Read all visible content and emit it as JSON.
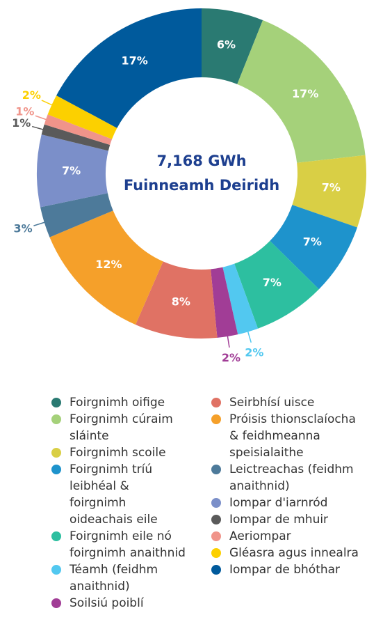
{
  "chart_data": {
    "type": "donut",
    "center_text": [
      "7,168 GWh",
      "Fuinneamh Deiridh"
    ],
    "series": [
      {
        "name": "Foirgnimh oifige",
        "color": "#2a7a72",
        "values": [
          6
        ],
        "value_labels": [
          "6%"
        ]
      },
      {
        "name": "Foirgnimh cúraim sláinte",
        "color": "#a5d17a",
        "values": [
          17
        ],
        "value_labels": [
          "17%"
        ]
      },
      {
        "name": "Foirgnimh scoile",
        "color": "#d9cf45",
        "values": [
          7
        ],
        "value_labels": [
          "7%"
        ]
      },
      {
        "name": "Foirgnimh tríú leibhéal & foirgnimh oideachais eile",
        "color": "#1e93cc",
        "values": [
          7
        ],
        "value_labels": [
          "7%"
        ]
      },
      {
        "name": "Foirgnimh eile nó foirgnimh anaithnid",
        "color": "#2dbfa0",
        "values": [
          7
        ],
        "value_labels": [
          "7%"
        ]
      },
      {
        "name": "Téamh (feidhm anaithnid)",
        "color": "#52c8f0",
        "values": [
          2
        ],
        "value_labels": [
          "2%"
        ]
      },
      {
        "name": "Soilsiú poiblí",
        "color": "#a13d96",
        "values": [
          2
        ],
        "value_labels": [
          "2%"
        ]
      },
      {
        "name": "Seirbhísí uisce",
        "color": "#e07264",
        "values": [
          8
        ],
        "value_labels": [
          "8%"
        ]
      },
      {
        "name": "Próisis thionsclaíocha & feidhmeanna speisialaithe",
        "color": "#f5a02a",
        "values": [
          12
        ],
        "value_labels": [
          "12%"
        ]
      },
      {
        "name": "Leictreachas (feidhm anaithnid)",
        "color": "#4d7a9a",
        "values": [
          3
        ],
        "value_labels": [
          "3%"
        ]
      },
      {
        "name": "Iompar d'iarnród",
        "color": "#7b8fc9",
        "values": [
          7
        ],
        "value_labels": [
          "7%"
        ]
      },
      {
        "name": "Iompar de mhuir",
        "color": "#5a5a5a",
        "values": [
          1
        ],
        "value_labels": [
          "1%"
        ]
      },
      {
        "name": "Aeriompar",
        "color": "#f0948a",
        "values": [
          1
        ],
        "value_labels": [
          "1%"
        ]
      },
      {
        "name": "Gléasra agus innealra",
        "color": "#fcd000",
        "values": [
          2
        ],
        "value_labels": [
          "2%"
        ]
      },
      {
        "name": "Iompar de bhóthar",
        "color": "#005a9c",
        "values": [
          17
        ],
        "value_labels": [
          "17%"
        ]
      }
    ]
  }
}
